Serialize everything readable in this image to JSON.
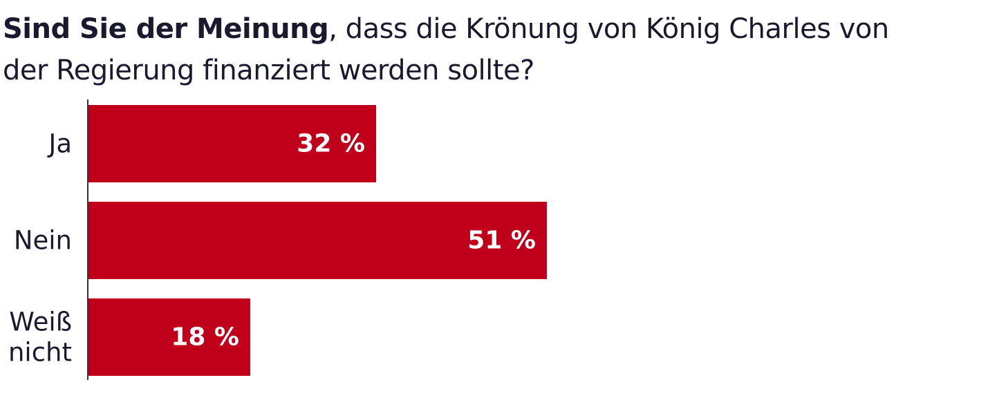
{
  "chart_data": {
    "type": "bar",
    "orientation": "horizontal",
    "title_bold": "Sind Sie der Meinung",
    "title_rest": ", dass die Krönung von König Charles von der Regierung finanziert werden sollte?",
    "categories": [
      [
        "Ja"
      ],
      [
        "Nein"
      ],
      [
        "Weiß",
        "nicht"
      ]
    ],
    "values": [
      32,
      51,
      18
    ],
    "value_labels": [
      "32 %",
      "51 %",
      "18 %"
    ],
    "xlim": [
      0,
      100
    ],
    "grid": false,
    "legend": "none",
    "colors": {
      "bar": "#c0001a",
      "axis": "#333333",
      "label": "#1a1a2e"
    }
  }
}
